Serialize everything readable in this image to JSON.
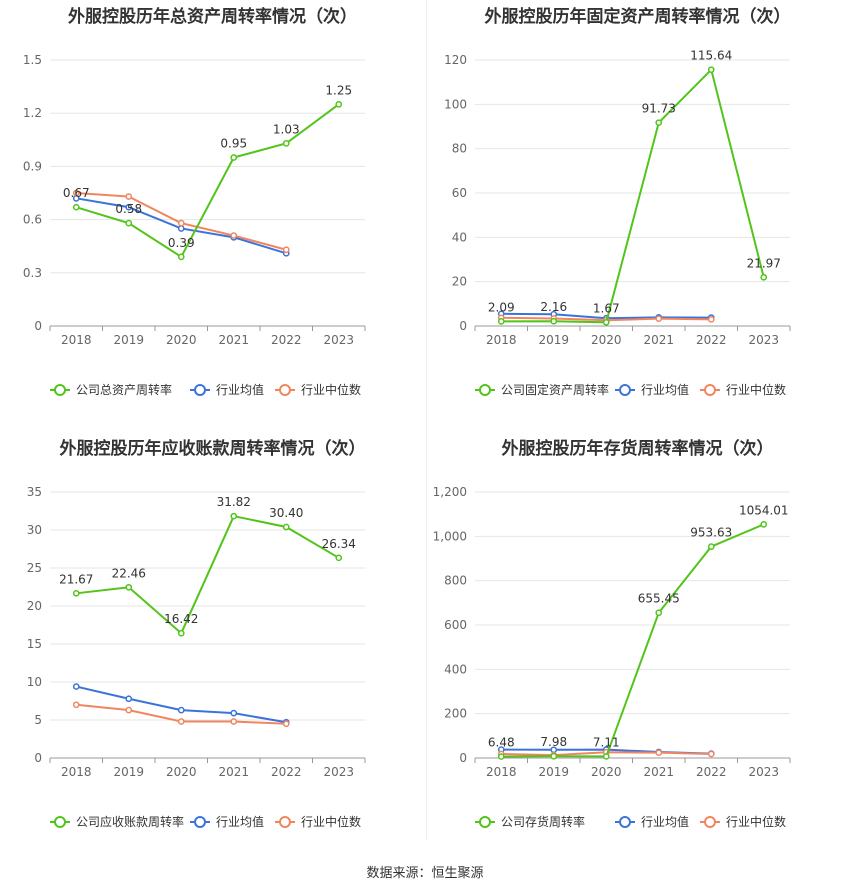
{
  "footer": "数据来源：恒生聚源",
  "colors": {
    "company": "#52c41a",
    "avg": "#3b73d9",
    "median": "#f08660"
  },
  "chart_data": [
    {
      "type": "line",
      "title": "外服控股历年总资产周转率情况（次）",
      "categories": [
        "2018",
        "2019",
        "2020",
        "2021",
        "2022",
        "2023"
      ],
      "ylim": [
        0,
        1.5
      ],
      "yticks": [
        "0",
        "0.3",
        "0.6",
        "0.9",
        "1.2",
        "1.5"
      ],
      "ytick_values": [
        0,
        0.3,
        0.6,
        0.9,
        1.2,
        1.5
      ],
      "grid": true,
      "legend_position": "bottom-left",
      "series": [
        {
          "name": "公司总资产周转率",
          "values": [
            0.67,
            0.58,
            0.39,
            0.95,
            1.03,
            1.25
          ],
          "labels": [
            "0.67",
            "0.58",
            "0.39",
            "0.95",
            "1.03",
            "1.25"
          ]
        },
        {
          "name": "行业均值",
          "values": [
            0.72,
            0.67,
            0.55,
            0.5,
            0.41,
            null
          ]
        },
        {
          "name": "行业中位数",
          "values": [
            0.75,
            0.73,
            0.58,
            0.51,
            0.43,
            null
          ]
        }
      ]
    },
    {
      "type": "line",
      "title": "外服控股历年固定资产周转率情况（次）",
      "categories": [
        "2018",
        "2019",
        "2020",
        "2021",
        "2022",
        "2023"
      ],
      "ylim": [
        0,
        120
      ],
      "yticks": [
        "0",
        "20",
        "40",
        "60",
        "80",
        "100",
        "120"
      ],
      "ytick_values": [
        0,
        20,
        40,
        60,
        80,
        100,
        120
      ],
      "grid": true,
      "legend_position": "bottom-left",
      "series": [
        {
          "name": "公司固定资产周转率",
          "values": [
            2.09,
            2.16,
            1.67,
            91.73,
            115.64,
            21.97
          ],
          "labels": [
            "2.09",
            "2.16",
            "1.67",
            "91.73",
            "115.64",
            "21.97"
          ]
        },
        {
          "name": "行业均值",
          "values": [
            5.5,
            5.3,
            3.5,
            3.9,
            3.8,
            null
          ]
        },
        {
          "name": "行业中位数",
          "values": [
            3.7,
            3.4,
            2.6,
            3.3,
            3.0,
            null
          ]
        }
      ]
    },
    {
      "type": "line",
      "title": "外服控股历年应收账款周转率情况（次）",
      "categories": [
        "2018",
        "2019",
        "2020",
        "2021",
        "2022",
        "2023"
      ],
      "ylim": [
        0,
        35
      ],
      "yticks": [
        "0",
        "5",
        "10",
        "15",
        "20",
        "25",
        "30",
        "35"
      ],
      "ytick_values": [
        0,
        5,
        10,
        15,
        20,
        25,
        30,
        35
      ],
      "grid": true,
      "legend_position": "bottom-left",
      "series": [
        {
          "name": "公司应收账款周转率",
          "values": [
            21.67,
            22.46,
            16.42,
            31.82,
            30.4,
            26.34
          ],
          "labels": [
            "21.67",
            "22.46",
            "16.42",
            "31.82",
            "30.40",
            "26.34"
          ]
        },
        {
          "name": "行业均值",
          "values": [
            9.4,
            7.8,
            6.3,
            5.9,
            4.7,
            null
          ]
        },
        {
          "name": "行业中位数",
          "values": [
            7.0,
            6.3,
            4.8,
            4.8,
            4.5,
            null
          ]
        }
      ]
    },
    {
      "type": "line",
      "title": "外服控股历年存货周转率情况（次）",
      "categories": [
        "2018",
        "2019",
        "2020",
        "2021",
        "2022",
        "2023"
      ],
      "ylim": [
        0,
        1200
      ],
      "yticks": [
        "0",
        "200",
        "400",
        "600",
        "800",
        "1,000",
        "1,200"
      ],
      "ytick_values": [
        0,
        200,
        400,
        600,
        800,
        1000,
        1200
      ],
      "grid": true,
      "legend_position": "bottom-left",
      "series": [
        {
          "name": "公司存货周转率",
          "values": [
            6.48,
            7.98,
            7.11,
            655.45,
            953.63,
            1054.01
          ],
          "labels": [
            "6.48",
            "7.98",
            "7.11",
            "655.45",
            "953.63",
            "1054.01"
          ]
        },
        {
          "name": "行业均值",
          "values": [
            38,
            37,
            38,
            27,
            20,
            null
          ]
        },
        {
          "name": "行业中位数",
          "values": [
            18,
            13,
            26,
            24,
            18,
            null
          ]
        }
      ]
    }
  ]
}
